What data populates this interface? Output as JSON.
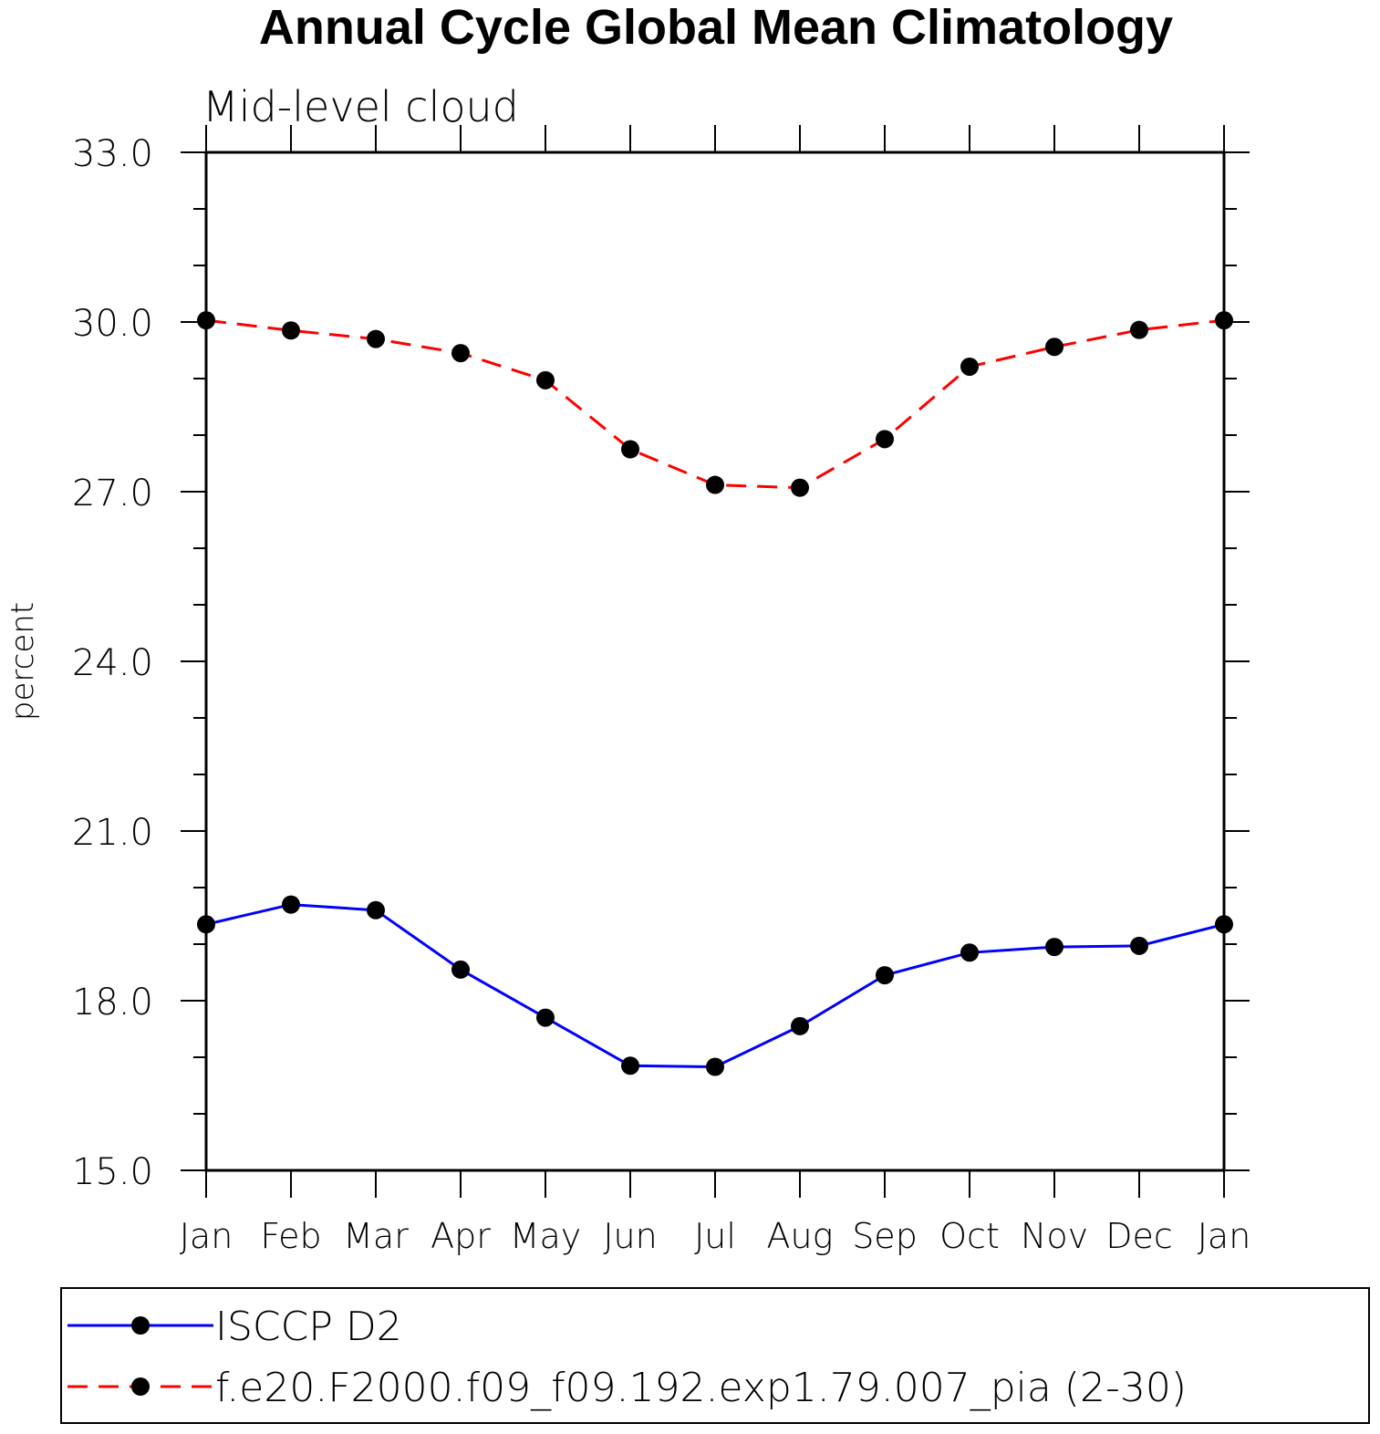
{
  "chart_data": {
    "type": "line",
    "title": "Annual Cycle Global Mean Climatology",
    "subtitle": "Mid-level cloud",
    "xlabel": "",
    "ylabel": "percent",
    "ylim": [
      15.0,
      33.0
    ],
    "yticks": [
      "15.0",
      "18.0",
      "21.0",
      "24.0",
      "27.0",
      "30.0",
      "33.0"
    ],
    "categories": [
      "Jan",
      "Feb",
      "Mar",
      "Apr",
      "May",
      "Jun",
      "Jul",
      "Aug",
      "Sep",
      "Oct",
      "Nov",
      "Dec",
      "Jan"
    ],
    "grid": false,
    "legend_position": "bottom",
    "series": [
      {
        "name": "ISCCP D2",
        "color": "#0000ff",
        "line_style": "solid",
        "marker": "filled-circle",
        "values": [
          19.35,
          19.7,
          19.6,
          18.55,
          17.7,
          16.85,
          16.83,
          17.55,
          18.45,
          18.85,
          18.95,
          18.97,
          19.35
        ]
      },
      {
        "name": "f.e20.F2000.f09_f09.192.exp1.79.007_pia (2-30)",
        "color": "#ff0000",
        "line_style": "dashed",
        "marker": "filled-circle",
        "values": [
          30.03,
          29.85,
          29.7,
          29.45,
          28.97,
          27.75,
          27.12,
          27.07,
          27.93,
          29.21,
          29.56,
          29.86,
          30.03
        ]
      }
    ]
  }
}
